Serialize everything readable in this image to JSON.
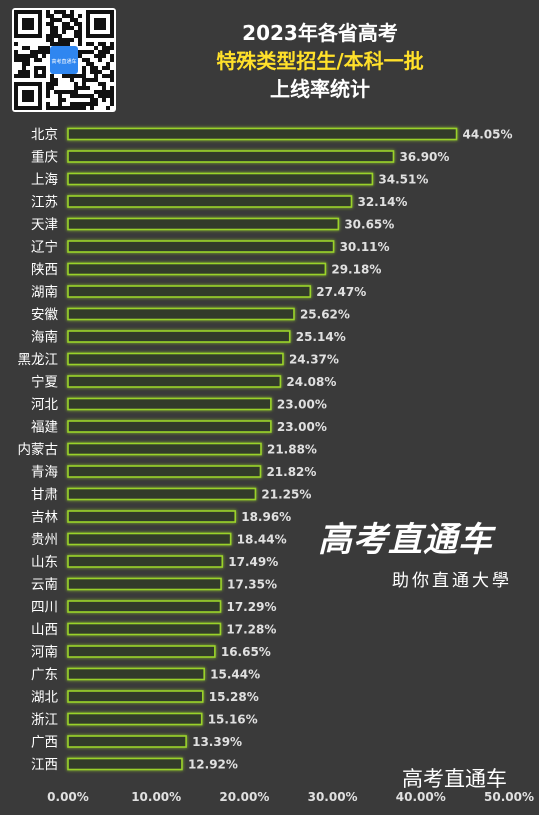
{
  "header": {
    "title_line1": "2023年各省高考",
    "title_line2": "特殊类型招生/本科一批",
    "title_line3": "上线率统计"
  },
  "qr_code": {
    "icon": "qr-code-icon",
    "center_text": "高考直通车"
  },
  "brand": {
    "logo_text": "高考直通车",
    "slogan": "助你直通大學",
    "watermark": "高考直通车"
  },
  "colors": {
    "background": "#3a3a3a",
    "bar_fill": "#323a2c",
    "bar_stroke": "#9ad22c",
    "text": "#ffffff",
    "value_text": "#e0e0e0",
    "title_accent": "#ffe02a"
  },
  "chart_data": {
    "type": "bar",
    "orientation": "horizontal",
    "categories": [
      "北京",
      "重庆",
      "上海",
      "江苏",
      "天津",
      "辽宁",
      "陕西",
      "湖南",
      "安徽",
      "海南",
      "黑龙江",
      "宁夏",
      "河北",
      "福建",
      "内蒙古",
      "青海",
      "甘肃",
      "吉林",
      "贵州",
      "山东",
      "云南",
      "四川",
      "山西",
      "河南",
      "广东",
      "湖北",
      "浙江",
      "广西",
      "江西"
    ],
    "values": [
      44.05,
      36.9,
      34.51,
      32.14,
      30.65,
      30.11,
      29.18,
      27.47,
      25.62,
      25.14,
      24.37,
      24.08,
      23.0,
      23.0,
      21.88,
      21.82,
      21.25,
      18.96,
      18.44,
      17.49,
      17.35,
      17.29,
      17.28,
      16.65,
      15.44,
      15.28,
      15.16,
      13.39,
      12.92
    ],
    "value_labels": [
      "44.05%",
      "36.90%",
      "34.51%",
      "32.14%",
      "30.65%",
      "30.11%",
      "29.18%",
      "27.47%",
      "25.62%",
      "25.14%",
      "24.37%",
      "24.08%",
      "23.00%",
      "23.00%",
      "21.88%",
      "21.82%",
      "21.25%",
      "18.96%",
      "18.44%",
      "17.49%",
      "17.35%",
      "17.29%",
      "17.28%",
      "16.65%",
      "15.44%",
      "15.28%",
      "15.16%",
      "13.39%",
      "12.92%"
    ],
    "x_range": [
      0,
      50
    ],
    "x_ticks": [
      0,
      10,
      20,
      30,
      40,
      50
    ],
    "x_tick_labels": [
      "0.00%",
      "10.00%",
      "20.00%",
      "30.00%",
      "40.00%",
      "50.00%"
    ],
    "grid": false,
    "legend": "none"
  }
}
